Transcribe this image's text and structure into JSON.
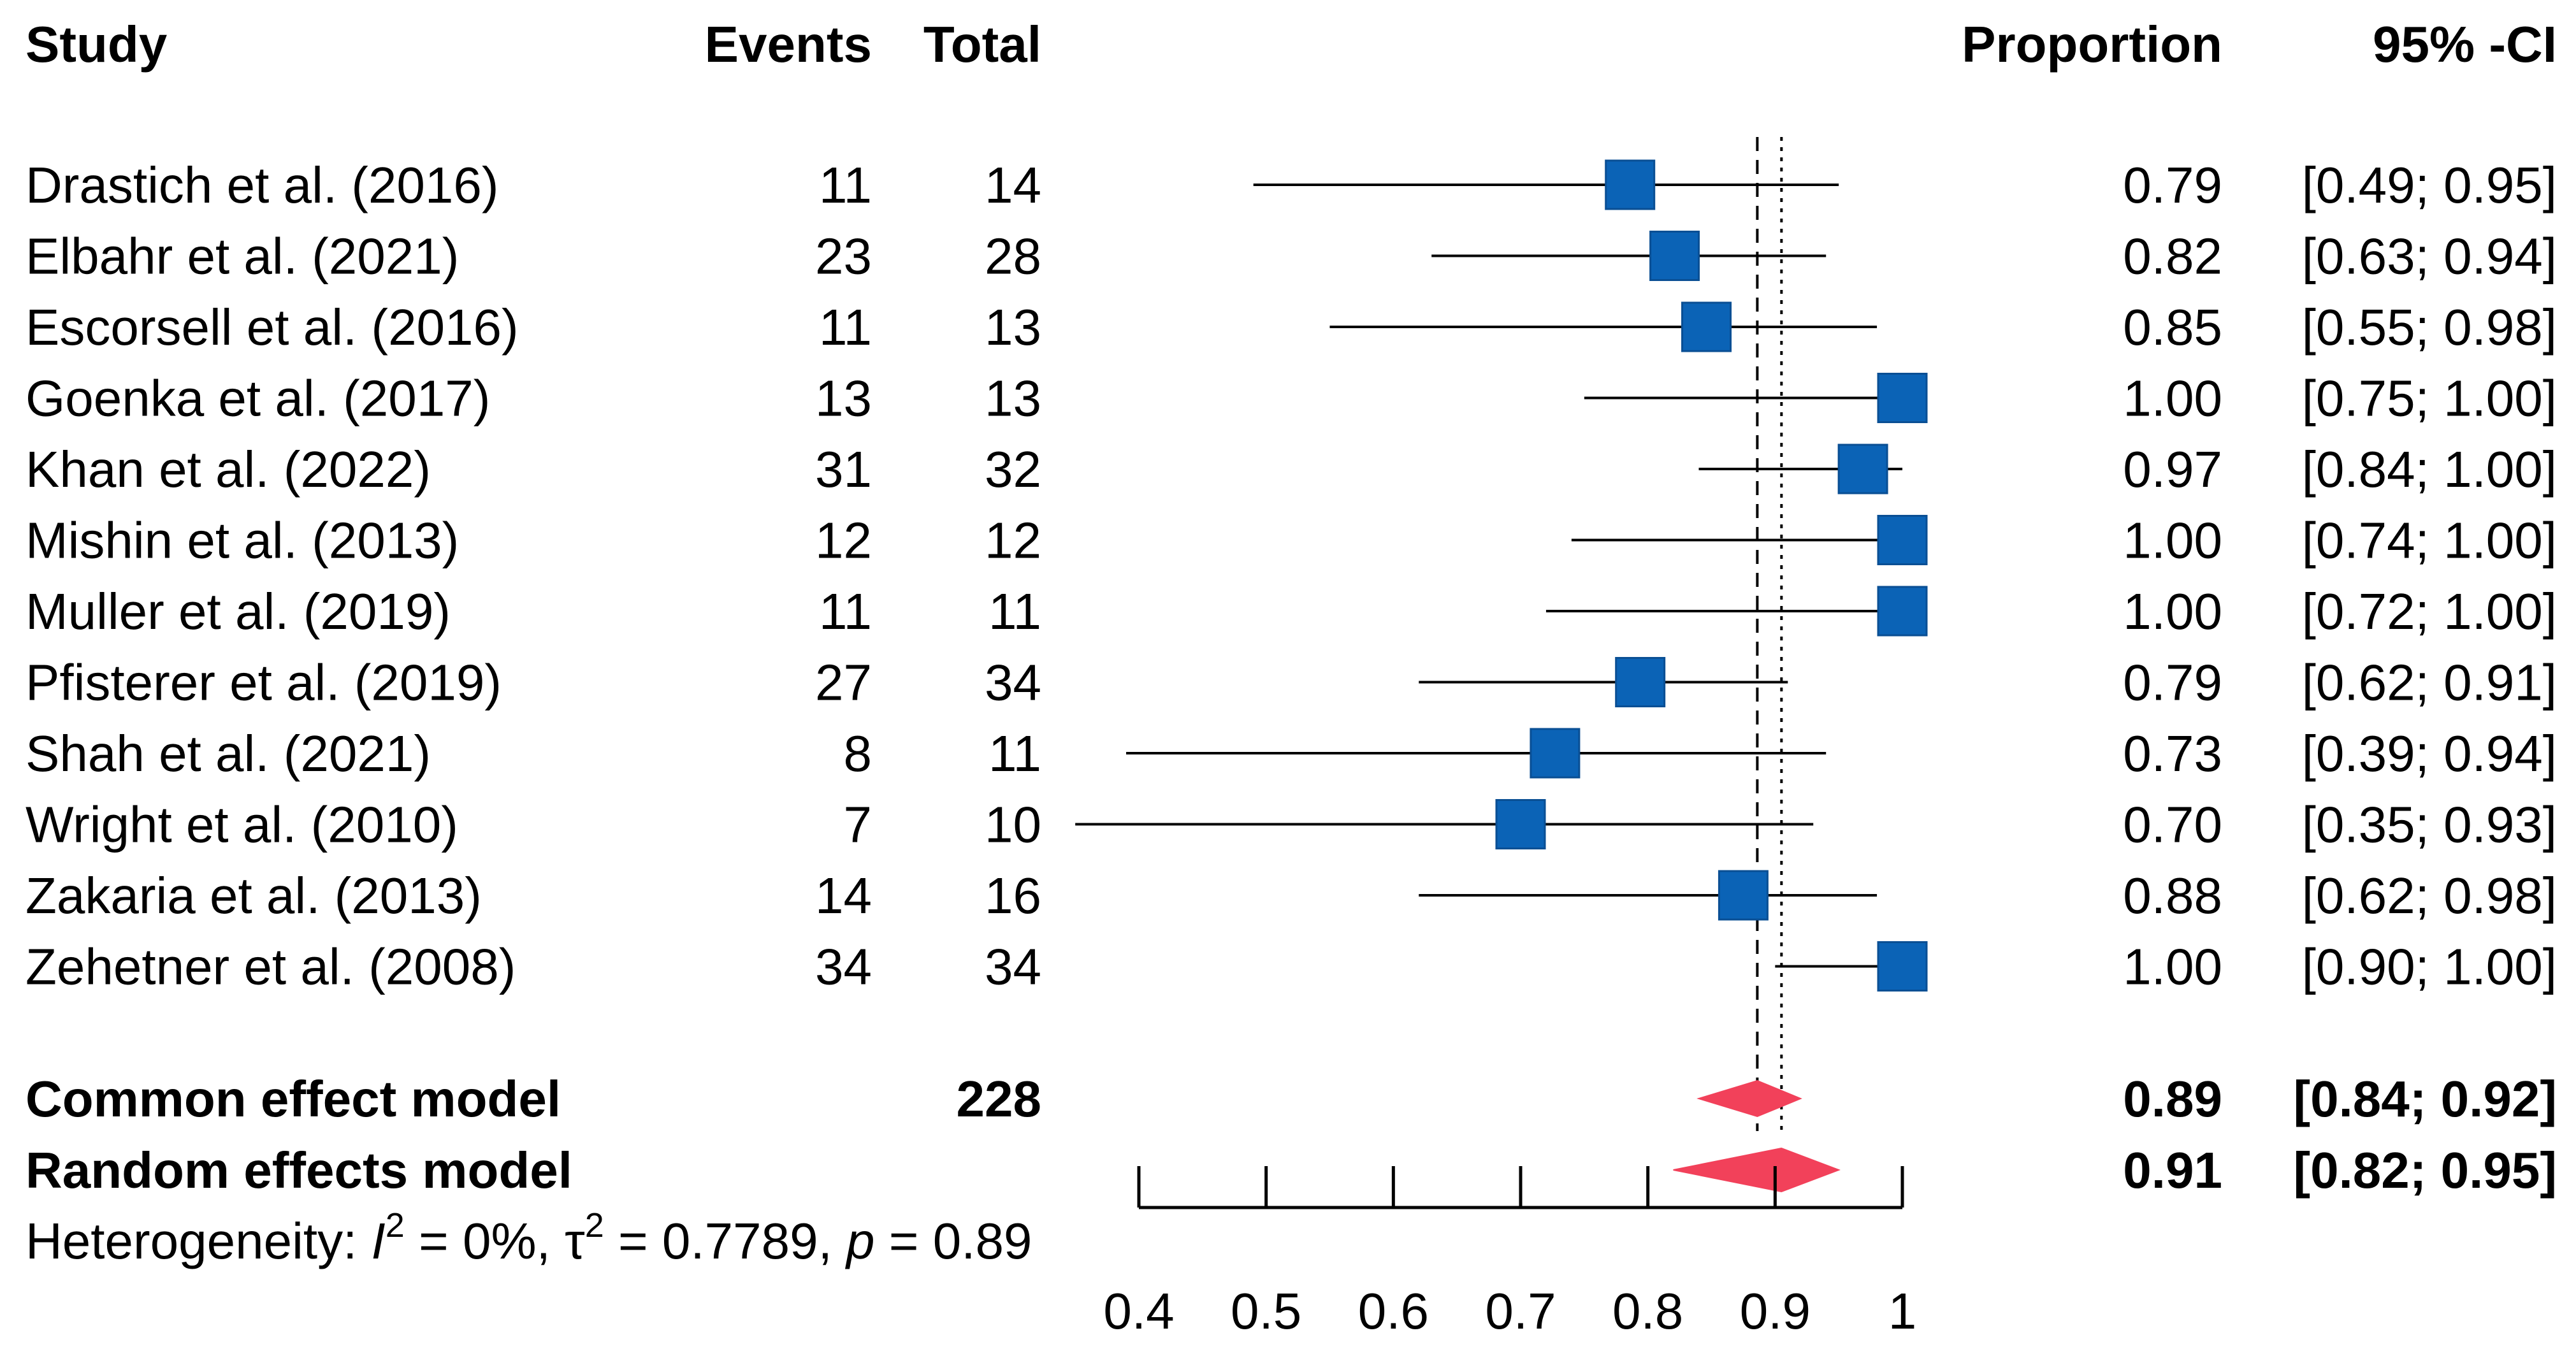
{
  "headers": {
    "study": "Study",
    "events": "Events",
    "total": "Total",
    "proportion": "Proportion",
    "ci": "95% -CI"
  },
  "chart_data": {
    "type": "forest",
    "xlim": [
      0.4,
      1.0
    ],
    "xticks": [
      "0.4",
      "0.5",
      "0.6",
      "0.7",
      "0.8",
      "0.9",
      "1"
    ],
    "common_line": 0.886,
    "random_line": 0.905,
    "studies": [
      {
        "study": "Drastich et al. (2016)",
        "events": "11",
        "total": "14",
        "prop_label": "0.79",
        "ci_label": "[0.49; 0.95]",
        "prop": 0.786,
        "lo": 0.49,
        "hi": 0.95,
        "weight": 14
      },
      {
        "study": "Elbahr et al. (2021)",
        "events": "23",
        "total": "28",
        "prop_label": "0.82",
        "ci_label": "[0.63; 0.94]",
        "prop": 0.821,
        "lo": 0.63,
        "hi": 0.94,
        "weight": 14
      },
      {
        "study": "Escorsell et al. (2016)",
        "events": "11",
        "total": "13",
        "prop_label": "0.85",
        "ci_label": "[0.55; 0.98]",
        "prop": 0.846,
        "lo": 0.55,
        "hi": 0.98,
        "weight": 14
      },
      {
        "study": "Goenka et al. (2017)",
        "events": "13",
        "total": "13",
        "prop_label": "1.00",
        "ci_label": "[0.75; 1.00]",
        "prop": 1.0,
        "lo": 0.75,
        "hi": 1.0,
        "weight": 14
      },
      {
        "study": "Khan  et al. (2022)",
        "events": "31",
        "total": "32",
        "prop_label": "0.97",
        "ci_label": "[0.84; 1.00]",
        "prop": 0.969,
        "lo": 0.84,
        "hi": 1.0,
        "weight": 14
      },
      {
        "study": "Mishin et al. (2013)",
        "events": "12",
        "total": "12",
        "prop_label": "1.00",
        "ci_label": "[0.74; 1.00]",
        "prop": 1.0,
        "lo": 0.74,
        "hi": 1.0,
        "weight": 14
      },
      {
        "study": "Muller et al. (2019)",
        "events": "11",
        "total": "11",
        "prop_label": "1.00",
        "ci_label": "[0.72; 1.00]",
        "prop": 1.0,
        "lo": 0.72,
        "hi": 1.0,
        "weight": 14
      },
      {
        "study": "Pfisterer et al. (2019)",
        "events": "27",
        "total": "34",
        "prop_label": "0.79",
        "ci_label": "[0.62; 0.91]",
        "prop": 0.794,
        "lo": 0.62,
        "hi": 0.91,
        "weight": 14
      },
      {
        "study": "Shah et al. (2021)",
        "events": "8",
        "total": "11",
        "prop_label": "0.73",
        "ci_label": "[0.39; 0.94]",
        "prop": 0.727,
        "lo": 0.39,
        "hi": 0.94,
        "weight": 14
      },
      {
        "study": "Wright et al. (2010)",
        "events": "7",
        "total": "10",
        "prop_label": "0.70",
        "ci_label": "[0.35; 0.93]",
        "prop": 0.7,
        "lo": 0.35,
        "hi": 0.93,
        "weight": 14
      },
      {
        "study": "Zakaria et al. (2013)",
        "events": "14",
        "total": "16",
        "prop_label": "0.88",
        "ci_label": "[0.62; 0.98]",
        "prop": 0.875,
        "lo": 0.62,
        "hi": 0.98,
        "weight": 14
      },
      {
        "study": "Zehetner et al. (2008)",
        "events": "34",
        "total": "34",
        "prop_label": "1.00",
        "ci_label": "[0.90; 1.00]",
        "prop": 1.0,
        "lo": 0.9,
        "hi": 1.0,
        "weight": 14
      }
    ],
    "models": [
      {
        "name": "Common effect model",
        "total": "228",
        "prop_label": "0.89",
        "ci_label": "[0.84; 0.92]",
        "prop": 0.886,
        "lo": 0.84,
        "hi": 0.92
      },
      {
        "name": "Random effects model",
        "total": "",
        "prop_label": "0.91",
        "ci_label": "[0.82; 0.95]",
        "prop": 0.905,
        "lo": 0.82,
        "hi": 0.95
      }
    ],
    "heterogeneity": {
      "prefix": "Heterogeneity: ",
      "i_sym": "I",
      "sup": "2",
      "i2_value": " = 0%, ",
      "tau_sym": "τ",
      "tau_value": " = 0.7789, ",
      "p_sym": "p",
      "p_value": " = 0.89"
    },
    "colors": {
      "square": "#0b63b6",
      "square_border": "#0a4f94",
      "diamond": "#f2415a",
      "line": "#000000"
    }
  }
}
